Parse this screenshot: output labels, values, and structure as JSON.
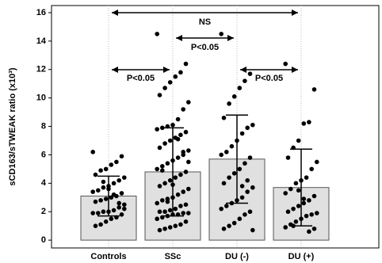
{
  "chart_data": {
    "type": "bar",
    "y_label": "sCD163/sTWEAK ratio (x10³)",
    "categories": [
      "Controls",
      "SSc",
      "DU (-)",
      "DU (+)"
    ],
    "values": [
      3.1,
      4.8,
      5.7,
      3.7
    ],
    "errors": [
      1.4,
      3.1,
      3.1,
      2.7
    ],
    "color": "#e0e0e0",
    "points": [
      [
        6.2,
        5.9,
        5.5,
        5.3,
        5.0,
        4.9,
        4.6,
        4.4,
        4.2,
        4.0,
        3.8,
        3.7,
        3.5,
        3.4,
        3.3,
        3.1,
        3.0,
        2.9,
        2.8,
        2.7,
        2.5,
        2.3,
        2.1,
        2.0,
        2.0,
        1.9,
        1.9,
        1.8,
        1.6,
        1.5,
        1.3,
        1.1,
        1.0,
        2.2,
        2.6,
        3.2,
        3.6,
        4.1
      ],
      [
        14.5,
        12.4,
        11.8,
        11.5,
        11.1,
        10.7,
        10.2,
        9.7,
        9.2,
        8.5,
        8.1,
        8.0,
        7.9,
        7.8,
        7.6,
        7.4,
        7.2,
        7.0,
        6.8,
        6.5,
        6.3,
        6.0,
        5.8,
        5.6,
        5.4,
        5.2,
        5.0,
        4.8,
        4.6,
        4.4,
        4.2,
        4.0,
        3.8,
        3.6,
        3.4,
        3.2,
        3.0,
        2.9,
        2.8,
        2.6,
        2.5,
        2.4,
        2.2,
        2.1,
        2.0,
        2.0,
        1.9,
        1.9,
        1.8,
        1.8,
        1.7,
        1.6,
        1.5,
        1.3,
        1.1,
        1.0,
        0.9,
        0.8,
        0.7,
        5.5,
        6.2,
        7.1,
        3.9,
        2.7,
        4.9
      ],
      [
        14.5,
        11.7,
        11.2,
        10.7,
        10.1,
        9.6,
        8.6,
        8.1,
        7.9,
        7.5,
        7.0,
        6.6,
        6.2,
        6.0,
        5.8,
        5.4,
        5.0,
        4.7,
        4.4,
        4.0,
        3.7,
        3.4,
        3.0,
        2.8,
        2.6,
        2.4,
        2.2,
        2.0,
        1.8,
        1.5,
        1.2,
        1.0,
        0.8,
        0.7,
        4.2,
        3.8
      ],
      [
        12.4,
        10.6,
        8.3,
        8.2,
        7.0,
        6.5,
        5.8,
        5.5,
        5.0,
        4.4,
        4.2,
        4.0,
        3.6,
        3.3,
        3.1,
        2.8,
        2.6,
        2.4,
        2.2,
        2.0,
        1.9,
        1.8,
        1.7,
        1.5,
        1.3,
        1.1,
        0.9,
        0.8,
        0.6,
        2.9,
        3.5,
        1.0
      ]
    ],
    "annotations": [
      "NS",
      "P<0.05",
      "P<0.05",
      "P<0.05"
    ],
    "ylim": [
      -0.55,
      16.5
    ],
    "yticks": [
      0,
      2,
      4,
      6,
      8,
      10,
      12,
      14,
      16
    ],
    "grid": true
  }
}
